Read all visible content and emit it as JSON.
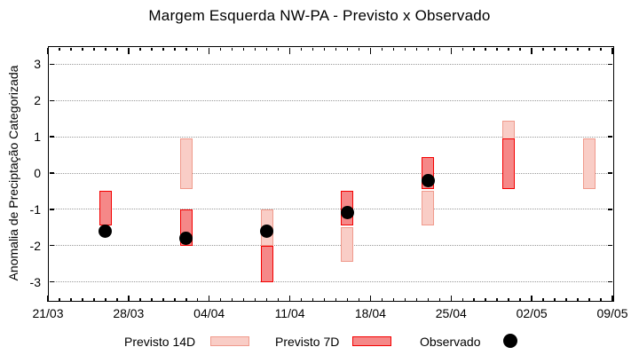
{
  "chart_data": {
    "type": "bar",
    "title": "Margem Esquerda NW-PA - Previsto x Observado",
    "ylabel": "Anomalia de Preciptação Categorizada",
    "ylim": [
      -3.5,
      3.5
    ],
    "yticks": [
      3,
      2,
      1,
      0,
      -1,
      -2,
      -3
    ],
    "grid": "horizontal dotted lines at integer y values",
    "legend_position": "bottom",
    "x_axis": {
      "tick_labels": [
        "21/03",
        "28/03",
        "04/04",
        "11/04",
        "18/04",
        "25/04",
        "02/05",
        "09/05"
      ],
      "days_per_major_tick": 7,
      "total_days": 49,
      "minor_tick_every_days": 1
    },
    "categories": [
      "26/03",
      "02/04",
      "09/04",
      "16/04",
      "23/04",
      "30/04",
      "07/05"
    ],
    "category_days_from_start": [
      5,
      12,
      19,
      26,
      33,
      40,
      47
    ],
    "series": [
      {
        "name": "Previsto 14D",
        "style": "range-bar",
        "fill": "#f9cdc6",
        "border": "#f09a8c",
        "ranges": [
          null,
          [
            0.95,
            -0.45
          ],
          [
            -1.0,
            -2.0
          ],
          [
            -1.5,
            -2.45
          ],
          [
            -0.5,
            -1.45
          ],
          [
            1.45,
            -0.45
          ],
          [
            0.95,
            -0.45
          ]
        ]
      },
      {
        "name": "Previsto 7D",
        "style": "range-bar",
        "fill": "#f58888",
        "border": "#f40000",
        "ranges": [
          [
            -0.5,
            -1.45
          ],
          [
            -1.0,
            -2.0
          ],
          [
            -2.0,
            -3.0
          ],
          [
            -0.5,
            -1.45
          ],
          [
            0.45,
            -0.45
          ],
          [
            0.95,
            -0.45
          ],
          null
        ]
      },
      {
        "name": "Observado",
        "style": "scatter",
        "color": "#000000",
        "values": [
          -1.6,
          -1.8,
          -1.6,
          -1.1,
          -0.2,
          null,
          null
        ]
      }
    ]
  }
}
